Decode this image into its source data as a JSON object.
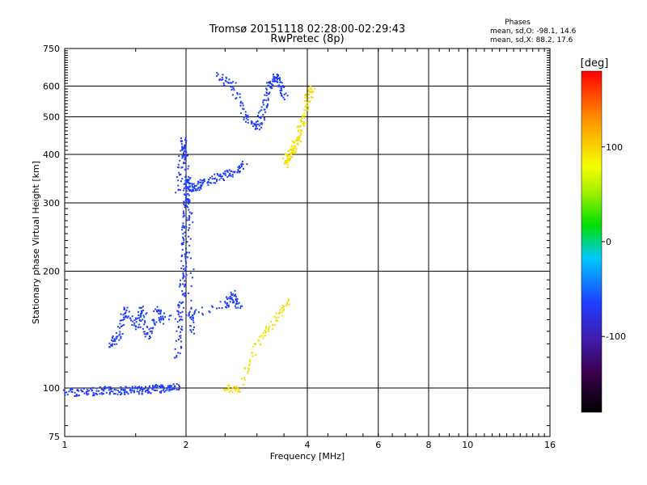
{
  "chart_data": {
    "type": "scatter",
    "title": "Tromsø 20151118 02:28:00-02:29:43",
    "subtitle": "RwPretec (8p)",
    "xlabel": "Frequency [MHz]",
    "ylabel": "Stationary phase Virtual Height [km]",
    "xscale": "log",
    "yscale": "log",
    "xlim": [
      1,
      16
    ],
    "ylim": [
      75,
      750
    ],
    "grid": true,
    "x_ticks": [
      1,
      2,
      4,
      6,
      8,
      10,
      16
    ],
    "y_ticks": [
      75,
      100,
      200,
      300,
      400,
      500,
      600,
      750
    ],
    "stats": {
      "title": "Phases",
      "line1": "mean, sd,O: -98.1, 14.6",
      "line2": "mean, sd,X:  88.2, 17.6"
    },
    "colorbar": {
      "label": "[deg]",
      "range": [
        -180,
        180
      ],
      "ticks": [
        -100,
        0,
        100
      ]
    },
    "series": [
      {
        "values_key": "O_mode",
        "phase_deg": -98.1,
        "color": "#1e3cff",
        "traces": [
          {
            "desc": "baseline low trace",
            "points": [
              [
                1.0,
                98
              ],
              [
                1.1,
                98
              ],
              [
                1.2,
                98.5
              ],
              [
                1.3,
                99
              ],
              [
                1.4,
                99
              ],
              [
                1.5,
                99
              ],
              [
                1.6,
                99.5
              ],
              [
                1.7,
                100
              ],
              [
                1.8,
                100.5
              ],
              [
                1.9,
                101
              ]
            ]
          },
          {
            "desc": "E/F1 patches",
            "points": [
              [
                1.3,
                130
              ],
              [
                1.35,
                135
              ],
              [
                1.4,
                160
              ],
              [
                1.5,
                145
              ],
              [
                1.55,
                160
              ],
              [
                1.6,
                135
              ],
              [
                1.7,
                160
              ],
              [
                1.75,
                150
              ],
              [
                2.5,
                165
              ],
              [
                2.6,
                175
              ],
              [
                2.7,
                160
              ]
            ]
          },
          {
            "desc": "vertical spread near 2 MHz",
            "points": [
              [
                1.9,
                120
              ],
              [
                1.92,
                150
              ],
              [
                1.95,
                180
              ],
              [
                1.97,
                210
              ],
              [
                1.98,
                250
              ],
              [
                2.0,
                290
              ],
              [
                2.0,
                320
              ],
              [
                2.02,
                350
              ],
              [
                2.05,
                160
              ],
              [
                2.08,
                140
              ]
            ]
          },
          {
            "desc": "F2 lower cusp",
            "points": [
              [
                1.9,
                320
              ],
              [
                1.95,
                400
              ],
              [
                1.97,
                440
              ],
              [
                2.0,
                330
              ],
              [
                2.1,
                330
              ],
              [
                2.2,
                340
              ],
              [
                2.4,
                350
              ],
              [
                2.6,
                360
              ],
              [
                2.8,
                380
              ]
            ]
          },
          {
            "desc": "F2 main trace",
            "points": [
              [
                2.4,
                640
              ],
              [
                2.6,
                600
              ],
              [
                2.8,
                500
              ],
              [
                3.0,
                470
              ],
              [
                3.1,
                520
              ],
              [
                3.2,
                600
              ],
              [
                3.3,
                640
              ],
              [
                3.4,
                620
              ],
              [
                3.5,
                560
              ]
            ]
          }
        ]
      },
      {
        "values_key": "X_mode",
        "phase_deg": 88.2,
        "color": "#f0e000",
        "traces": [
          {
            "desc": "X cusp",
            "points": [
              [
                3.5,
                380
              ],
              [
                3.6,
                400
              ],
              [
                3.7,
                420
              ],
              [
                3.8,
                450
              ],
              [
                3.9,
                500
              ],
              [
                4.0,
                560
              ],
              [
                4.1,
                600
              ]
            ]
          },
          {
            "desc": "scattered low",
            "points": [
              [
                2.5,
                100
              ],
              [
                2.7,
                100
              ],
              [
                3.0,
                130
              ],
              [
                3.3,
                150
              ],
              [
                3.6,
                170
              ]
            ]
          }
        ]
      }
    ]
  }
}
